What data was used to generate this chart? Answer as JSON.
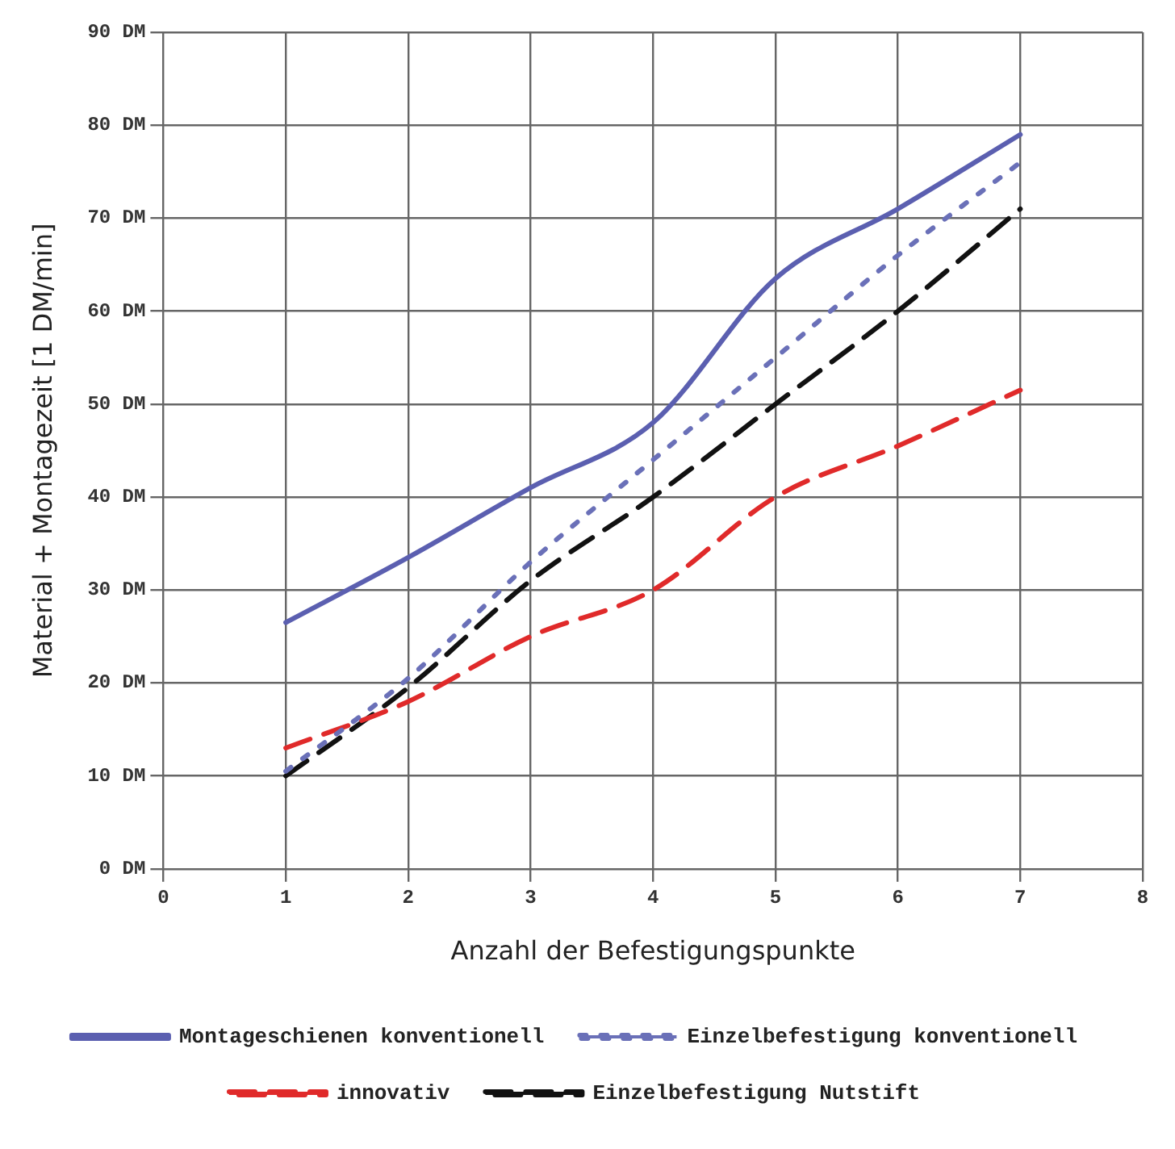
{
  "chart_data": {
    "type": "line",
    "xlabel": "Anzahl der Befestigungspunkte",
    "ylabel": "Material + Montagezeit [1 DM/min]",
    "xlim": [
      0,
      8
    ],
    "xticks": [
      0,
      1,
      2,
      3,
      4,
      5,
      6,
      7,
      8
    ],
    "ylim": [
      0,
      90
    ],
    "yticks": [
      {
        "value": 0,
        "label": "0 DM"
      },
      {
        "value": 10,
        "label": "10 DM"
      },
      {
        "value": 20,
        "label": "20 DM"
      },
      {
        "value": 30,
        "label": "30 DM"
      },
      {
        "value": 40,
        "label": "40 DM"
      },
      {
        "value": 50,
        "label": "50 DM"
      },
      {
        "value": 60,
        "label": "60 DM"
      },
      {
        "value": 70,
        "label": "70 DM"
      },
      {
        "value": 80,
        "label": "80 DM"
      },
      {
        "value": 90,
        "label": "90 DM"
      }
    ],
    "grid": true,
    "legend": "bottom",
    "marker": "none",
    "x": [
      1,
      2,
      3,
      4,
      5,
      6,
      7
    ],
    "series": [
      {
        "name": "Montageschienen konventionell",
        "color": "#5b5fb0",
        "line_style": "solid",
        "values": [
          26.5,
          33.5,
          41,
          48,
          63.5,
          71,
          79
        ]
      },
      {
        "name": "Einzelbefestigung konventionell",
        "color": "#6a70b8",
        "line_style": "dotted",
        "values": [
          10.5,
          20.5,
          33,
          44,
          55,
          66,
          76
        ]
      },
      {
        "name": "innovativ",
        "color": "#e02a2a",
        "line_style": "dashed",
        "values": [
          13,
          18,
          25,
          30,
          40,
          45.5,
          51.5
        ]
      },
      {
        "name": "Einzelbefestigung Nutstift",
        "color": "#111111",
        "line_style": "dashed",
        "values": [
          10,
          19.5,
          31,
          40,
          50,
          60,
          71
        ]
      }
    ]
  }
}
